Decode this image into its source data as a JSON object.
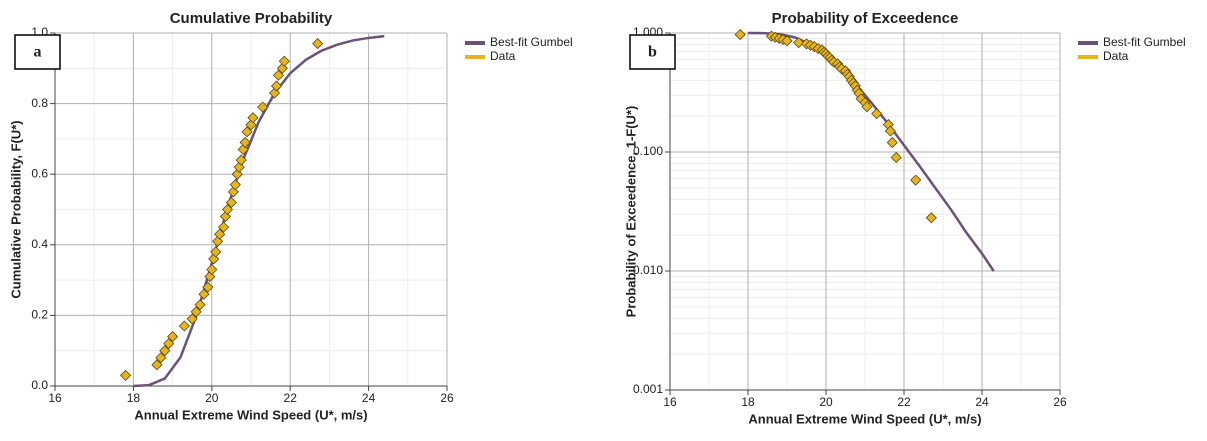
{
  "chart_data": [
    {
      "type": "scatter",
      "label": "a",
      "title": "Cumulative Probability",
      "x_label": "Annual Extreme Wind Speed (U*, m/s)",
      "y_label": "Cumulative Probability, F(U*)",
      "xlim": [
        16,
        26
      ],
      "xticks": [
        16,
        18,
        20,
        22,
        24,
        26
      ],
      "ylim": [
        0,
        1
      ],
      "yticks": [
        {
          "value": 0,
          "label": "0.0"
        },
        0.2,
        0.4,
        0.6,
        0.8,
        {
          "value": 1,
          "label": "1.0"
        }
      ],
      "grid": true,
      "legend": "right",
      "series": [
        {
          "name": "Best-fit Gumbel",
          "color": "#6b5277",
          "marker": "line",
          "x": [
            18.0,
            18.4,
            18.8,
            19.2,
            19.6,
            20.0,
            20.4,
            20.8,
            21.2,
            21.6,
            22.0,
            22.4,
            22.8,
            23.2,
            23.6,
            24.0,
            24.4
          ],
          "values": [
            0.0001,
            0.0026,
            0.021,
            0.081,
            0.197,
            0.348,
            0.504,
            0.641,
            0.749,
            0.829,
            0.886,
            0.924,
            0.95,
            0.967,
            0.979,
            0.986,
            0.991
          ]
        },
        {
          "name": "Data",
          "color": "#e6b422",
          "marker": "diamond",
          "x": [
            17.8,
            18.6,
            18.7,
            18.8,
            18.9,
            19.0,
            19.3,
            19.5,
            19.6,
            19.7,
            19.8,
            19.9,
            19.95,
            20.0,
            20.05,
            20.1,
            20.15,
            20.2,
            20.3,
            20.35,
            20.4,
            20.5,
            20.55,
            20.6,
            20.65,
            20.7,
            20.75,
            20.8,
            20.85,
            20.9,
            21.0,
            21.05,
            21.3,
            21.6,
            21.65,
            21.7,
            21.8,
            21.85,
            22.7
          ],
          "values": [
            0.03,
            0.06,
            0.08,
            0.1,
            0.12,
            0.14,
            0.17,
            0.19,
            0.21,
            0.23,
            0.26,
            0.28,
            0.31,
            0.33,
            0.36,
            0.38,
            0.41,
            0.43,
            0.45,
            0.48,
            0.5,
            0.52,
            0.55,
            0.57,
            0.6,
            0.62,
            0.64,
            0.67,
            0.69,
            0.72,
            0.74,
            0.76,
            0.79,
            0.83,
            0.85,
            0.88,
            0.9,
            0.92,
            0.97
          ]
        }
      ]
    },
    {
      "type": "scatter",
      "label": "b",
      "title": "Probability of Exceedence",
      "x_label": "Annual Extreme Wind Speed (U*, m/s)",
      "y_label": "Probability of Exceedence, 1-F(U*)",
      "xlim": [
        16,
        26
      ],
      "xticks": [
        16,
        18,
        20,
        22,
        24,
        26
      ],
      "ylim": [
        0.001,
        1
      ],
      "log_y": true,
      "yticks": [
        {
          "value": 0.001,
          "label": "0.001"
        },
        {
          "value": 0.01,
          "label": "0.010"
        },
        {
          "value": 0.1,
          "label": "0.100"
        },
        {
          "value": 1,
          "label": "1.000"
        }
      ],
      "grid": true,
      "legend": "right",
      "series": [
        {
          "name": "Best-fit Gumbel",
          "color": "#6b5277",
          "marker": "line",
          "x": [
            18.0,
            18.4,
            18.8,
            19.2,
            19.6,
            20.0,
            20.4,
            20.8,
            21.2,
            21.6,
            22.0,
            22.4,
            22.8,
            23.2,
            23.6,
            24.0,
            24.3
          ],
          "values": [
            0.9999,
            0.9974,
            0.979,
            0.919,
            0.803,
            0.652,
            0.496,
            0.359,
            0.251,
            0.171,
            0.114,
            0.076,
            0.05,
            0.033,
            0.021,
            0.014,
            0.01
          ]
        },
        {
          "name": "Data",
          "color": "#e6b422",
          "marker": "diamond",
          "x": [
            17.8,
            18.6,
            18.7,
            18.8,
            18.9,
            19.0,
            19.3,
            19.5,
            19.6,
            19.7,
            19.8,
            19.9,
            19.95,
            20.0,
            20.05,
            20.1,
            20.15,
            20.2,
            20.3,
            20.35,
            20.4,
            20.5,
            20.55,
            20.6,
            20.65,
            20.7,
            20.75,
            20.8,
            20.85,
            20.9,
            21.0,
            21.05,
            21.3,
            21.6,
            21.65,
            21.7,
            21.8,
            22.3,
            22.7
          ],
          "values": [
            0.97,
            0.94,
            0.92,
            0.9,
            0.88,
            0.86,
            0.83,
            0.81,
            0.79,
            0.77,
            0.74,
            0.72,
            0.69,
            0.67,
            0.64,
            0.62,
            0.59,
            0.57,
            0.55,
            0.52,
            0.5,
            0.48,
            0.45,
            0.43,
            0.4,
            0.38,
            0.36,
            0.33,
            0.31,
            0.28,
            0.26,
            0.24,
            0.21,
            0.17,
            0.15,
            0.12,
            0.09,
            0.058,
            0.028
          ]
        }
      ]
    }
  ]
}
